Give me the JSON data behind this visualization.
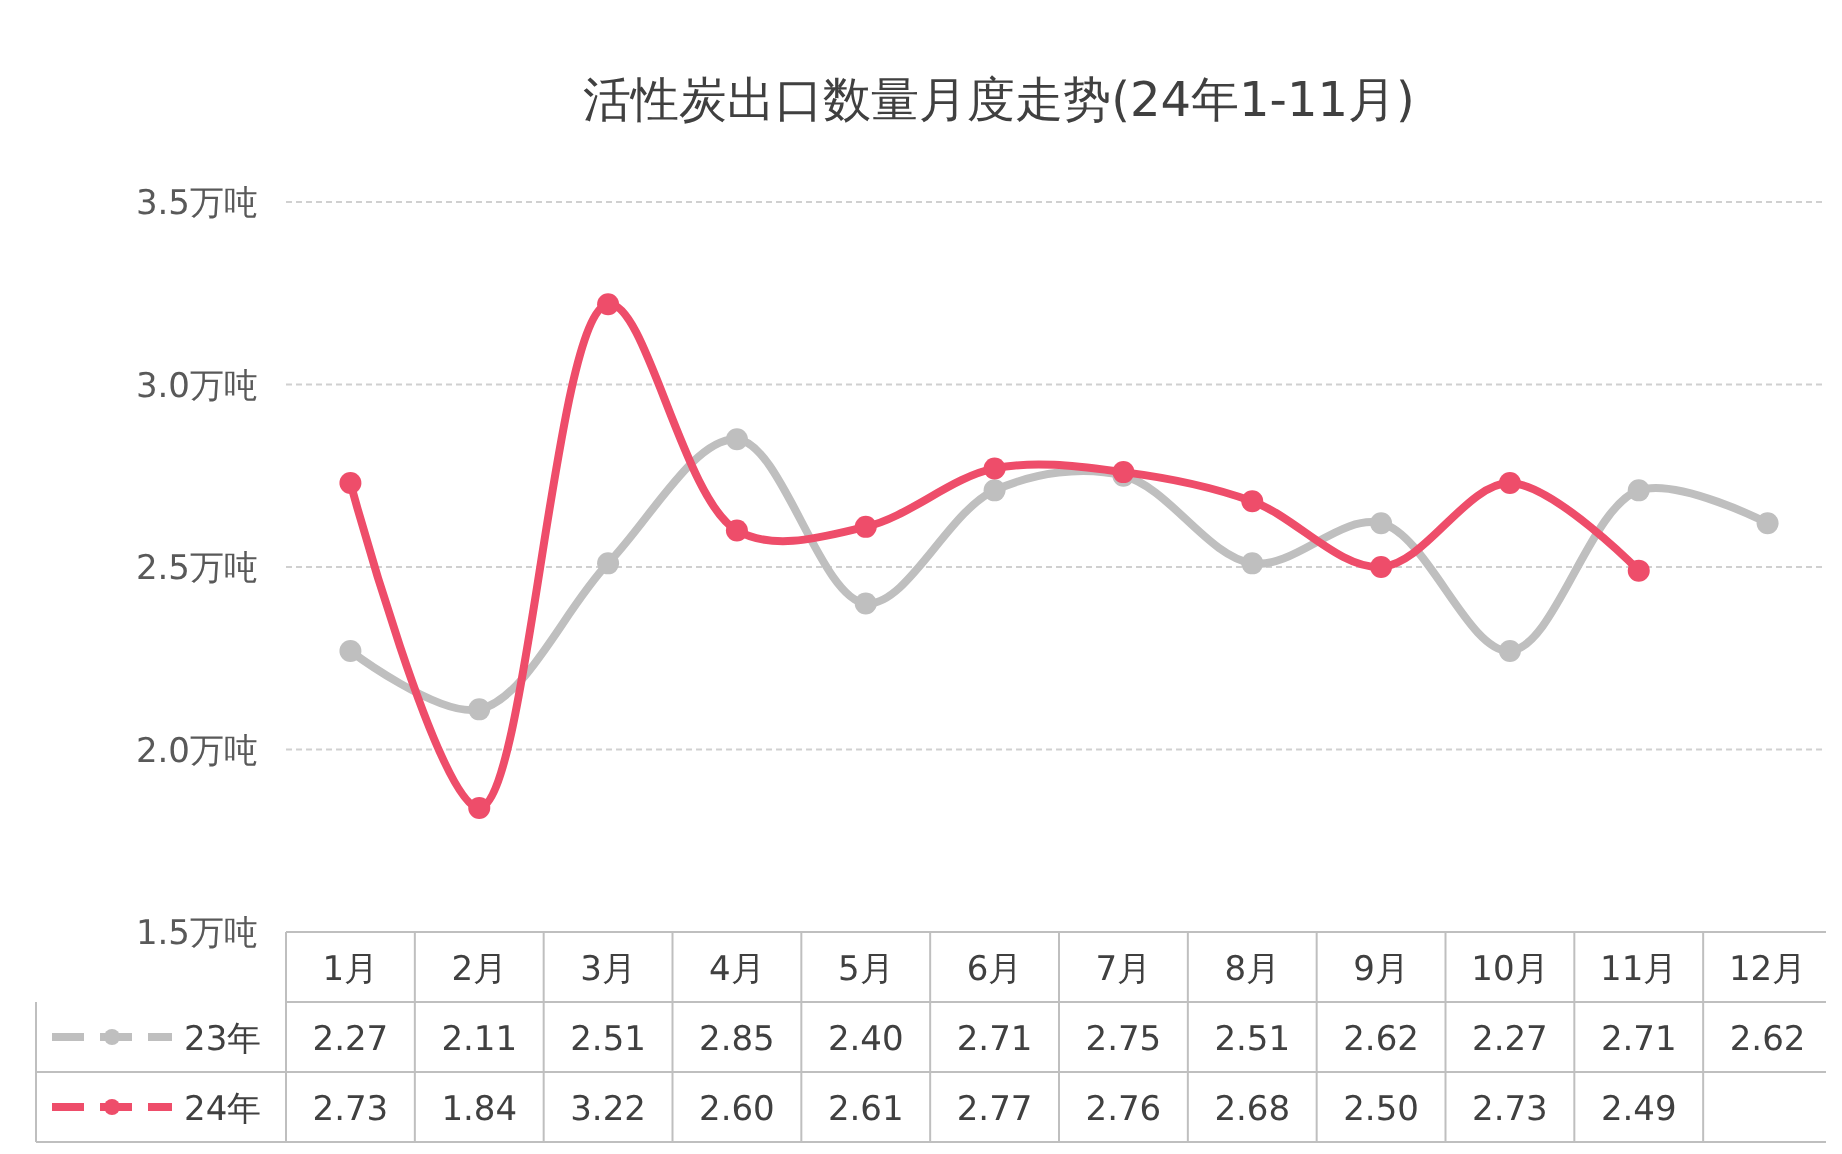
{
  "chart_data": {
    "type": "line",
    "title": "活性炭出口数量月度走势(24年1-11月)",
    "categories": [
      "1月",
      "2月",
      "3月",
      "4月",
      "5月",
      "6月",
      "7月",
      "8月",
      "9月",
      "10月",
      "11月",
      "12月"
    ],
    "ylim": [
      1.5,
      3.5
    ],
    "yticks": [
      {
        "value": 1.5,
        "label": "1.5万吨"
      },
      {
        "value": 2.0,
        "label": "2.0万吨"
      },
      {
        "value": 2.5,
        "label": "2.5万吨"
      },
      {
        "value": 3.0,
        "label": "3.0万吨"
      },
      {
        "value": 3.5,
        "label": "3.5万吨"
      }
    ],
    "grid": "y",
    "legend": "bottom",
    "marker": "circle",
    "series": [
      {
        "name": "23年",
        "color": "#bfbfbf",
        "values": [
          2.27,
          2.11,
          2.51,
          2.85,
          2.4,
          2.71,
          2.75,
          2.51,
          2.62,
          2.27,
          2.71,
          2.62
        ],
        "value_labels": [
          "2.27",
          "2.11",
          "2.51",
          "2.85",
          "2.40",
          "2.71",
          "2.75",
          "2.51",
          "2.62",
          "2.27",
          "2.71",
          "2.62"
        ]
      },
      {
        "name": "24年",
        "color": "#ee4d6a",
        "values": [
          2.73,
          1.84,
          3.22,
          2.6,
          2.61,
          2.77,
          2.76,
          2.68,
          2.5,
          2.73,
          2.49,
          null
        ],
        "value_labels": [
          "2.73",
          "1.84",
          "3.22",
          "2.60",
          "2.61",
          "2.77",
          "2.76",
          "2.68",
          "2.50",
          "2.73",
          "2.49",
          null
        ]
      }
    ]
  }
}
